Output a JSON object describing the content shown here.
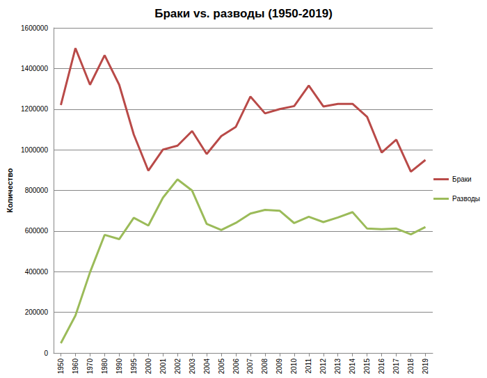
{
  "chart_data": {
    "type": "line",
    "title": "Браки vs. разводы (1950-2019)",
    "y_label": "Количество",
    "categories": [
      "1950",
      "1960",
      "1970",
      "1980",
      "1990",
      "1995",
      "2000",
      "2001",
      "2002",
      "2003",
      "2004",
      "2005",
      "2006",
      "2007",
      "2008",
      "2009",
      "2010",
      "2011",
      "2012",
      "2013",
      "2014",
      "2015",
      "2016",
      "2017",
      "2018",
      "2019"
    ],
    "series": [
      {
        "name": "Браки",
        "color": "#b94a48",
        "values": [
          1220000,
          1500000,
          1320000,
          1465000,
          1320000,
          1075000,
          897000,
          1001000,
          1020000,
          1092000,
          979000,
          1067000,
          1113000,
          1262000,
          1179000,
          1200000,
          1215000,
          1316000,
          1213000,
          1226000,
          1226000,
          1162000,
          986000,
          1050000,
          892000,
          950000
        ]
      },
      {
        "name": "Разводы",
        "color": "#9bbb59",
        "values": [
          48000,
          184000,
          397000,
          581000,
          560000,
          665000,
          627000,
          764000,
          854000,
          799000,
          635000,
          605000,
          640000,
          686000,
          704000,
          700000,
          639000,
          670000,
          644000,
          667000,
          693000,
          612000,
          609000,
          612000,
          584000,
          620000
        ]
      }
    ],
    "ylim": [
      0,
      1600000
    ],
    "yticks": [
      0,
      200000,
      400000,
      600000,
      800000,
      1000000,
      1200000,
      1400000,
      1600000
    ],
    "grid": true,
    "legend": "right"
  }
}
